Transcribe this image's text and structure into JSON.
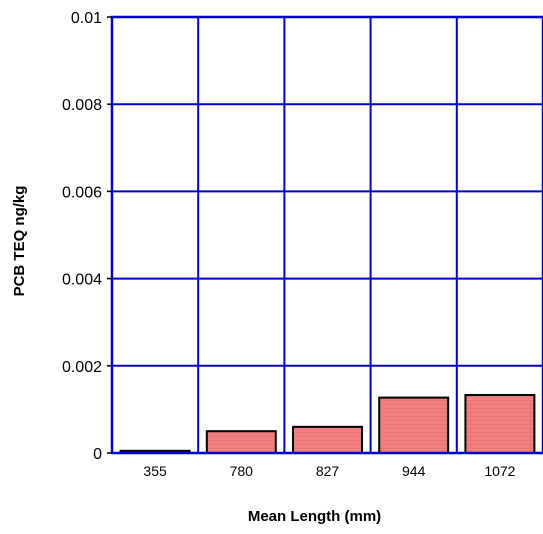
{
  "chart_data": {
    "type": "bar",
    "title": "",
    "xlabel": "Mean Length (mm)",
    "ylabel": "PCB TEQ ng/kg",
    "categories": [
      "355",
      "780",
      "827",
      "944",
      "1072"
    ],
    "values": [
      5e-05,
      0.0005,
      0.0006,
      0.00127,
      0.00133
    ],
    "ylim": [
      0,
      0.01
    ],
    "yticks": [
      0,
      0.002,
      0.004,
      0.006,
      0.008,
      0.01
    ],
    "ytick_labels": [
      "0",
      "0.002",
      "0.004",
      "0.006",
      "0.008",
      "0.01"
    ],
    "grid": true,
    "bar_color": "#f08080",
    "grid_color": "#0000cc"
  }
}
